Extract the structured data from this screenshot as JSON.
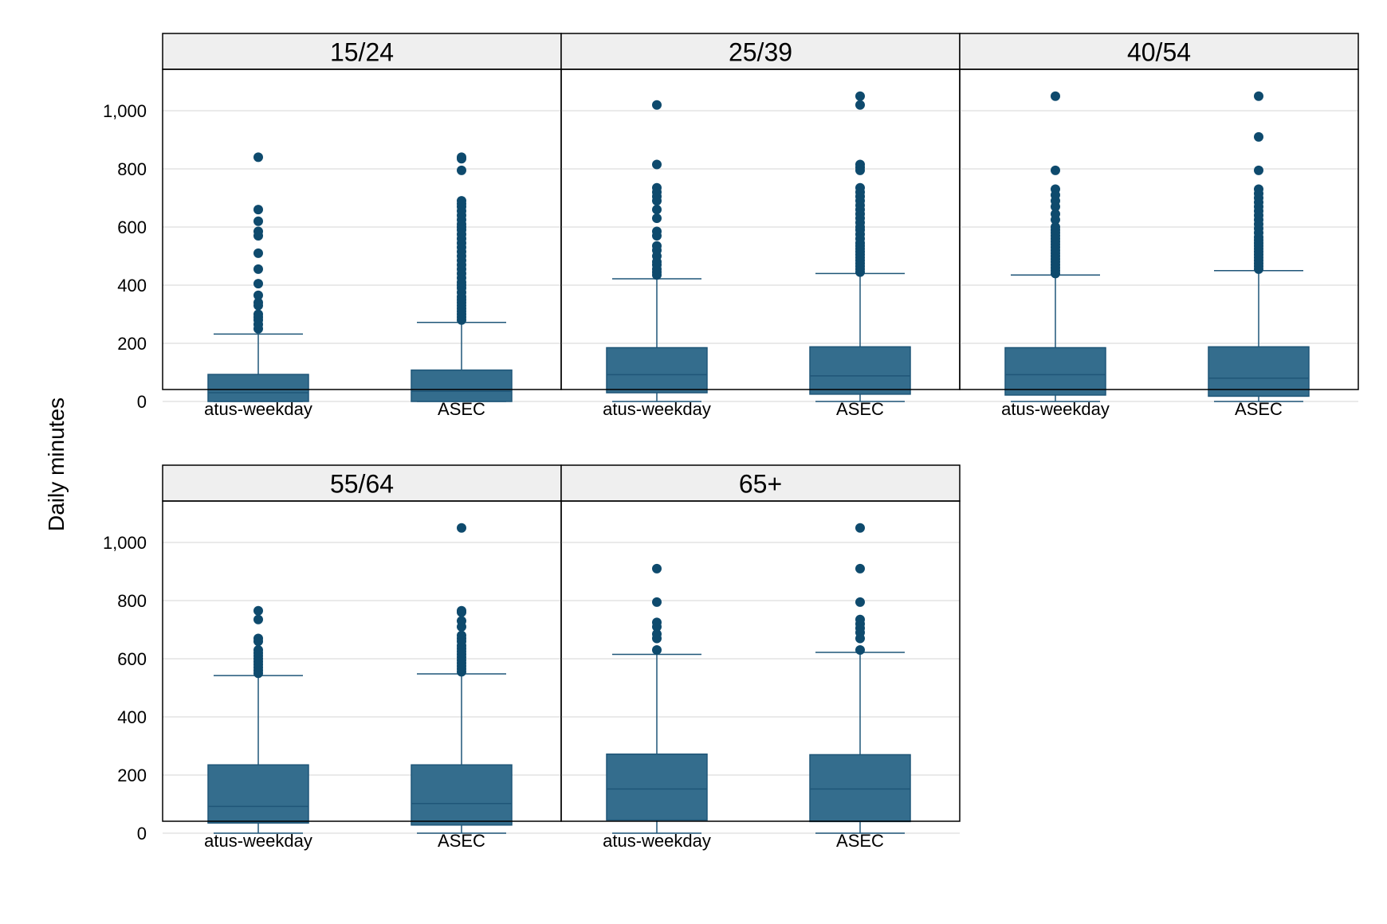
{
  "chart_data": {
    "type": "box",
    "ylabel": "Daily minutes",
    "yticks": [
      0,
      200,
      400,
      600,
      800,
      1000
    ],
    "ytick_labels": [
      "0",
      "200",
      "400",
      "600",
      "800",
      "1,000"
    ],
    "ylim": [
      -85,
      1120
    ],
    "categories": [
      "atus-weekday",
      "ASEC"
    ],
    "colors": {
      "box": "#346d8d",
      "line": "#1f5678",
      "outlier": "#0e4a6d",
      "strip": "#efefef",
      "grid": "#e3e3e3"
    },
    "panels": [
      {
        "label": "15/24",
        "boxes": [
          {
            "category": "atus-weekday",
            "min": 0,
            "q1": 0,
            "median": 30,
            "q3": 93,
            "whisker_high": 232,
            "outliers": [
              250,
              265,
              280,
              290,
              300,
              330,
              340,
              365,
              405,
              455,
              510,
              570,
              585,
              620,
              660,
              840
            ]
          },
          {
            "category": "ASEC",
            "min": 0,
            "q1": 0,
            "median": 35,
            "q3": 108,
            "whisker_high": 272,
            "outliers": [
              280,
              290,
              300,
              310,
              320,
              330,
              340,
              350,
              360,
              375,
              390,
              400,
              410,
              425,
              440,
              455,
              470,
              485,
              500,
              515,
              530,
              545,
              560,
              575,
              590,
              600,
              610,
              625,
              640,
              655,
              670,
              680,
              690,
              795,
              835,
              840
            ]
          }
        ]
      },
      {
        "label": "25/39",
        "boxes": [
          {
            "category": "atus-weekday",
            "min": 0,
            "q1": 30,
            "median": 92,
            "q3": 185,
            "whisker_high": 422,
            "outliers": [
              435,
              445,
              455,
              470,
              480,
              500,
              520,
              535,
              570,
              585,
              630,
              660,
              690,
              705,
              720,
              735,
              815,
              1020
            ]
          },
          {
            "category": "ASEC",
            "min": 0,
            "q1": 25,
            "median": 88,
            "q3": 188,
            "whisker_high": 440,
            "outliers": [
              445,
              455,
              465,
              475,
              485,
              495,
              505,
              515,
              525,
              535,
              545,
              560,
              575,
              590,
              600,
              615,
              630,
              645,
              660,
              675,
              690,
              705,
              720,
              735,
              795,
              805,
              815,
              1020,
              1050
            ]
          }
        ]
      },
      {
        "label": "40/54",
        "boxes": [
          {
            "category": "atus-weekday",
            "min": 0,
            "q1": 22,
            "median": 92,
            "q3": 185,
            "whisker_high": 435,
            "outliers": [
              440,
              450,
              460,
              470,
              480,
              490,
              500,
              510,
              520,
              530,
              540,
              550,
              560,
              570,
              580,
              590,
              600,
              625,
              645,
              670,
              690,
              710,
              730,
              795,
              1050
            ]
          },
          {
            "category": "ASEC",
            "min": 0,
            "q1": 18,
            "median": 80,
            "q3": 188,
            "whisker_high": 450,
            "outliers": [
              455,
              465,
              475,
              485,
              495,
              505,
              515,
              525,
              535,
              545,
              555,
              565,
              580,
              595,
              610,
              625,
              640,
              655,
              670,
              685,
              700,
              715,
              730,
              795,
              910,
              1050
            ]
          }
        ]
      },
      {
        "label": "55/64",
        "boxes": [
          {
            "category": "atus-weekday",
            "min": 0,
            "q1": 35,
            "median": 92,
            "q3": 235,
            "whisker_high": 542,
            "outliers": [
              550,
              560,
              570,
              580,
              590,
              600,
              610,
              620,
              630,
              660,
              670,
              735,
              765
            ]
          },
          {
            "category": "ASEC",
            "min": 0,
            "q1": 28,
            "median": 102,
            "q3": 235,
            "whisker_high": 548,
            "outliers": [
              555,
              565,
              575,
              585,
              595,
              605,
              615,
              625,
              635,
              645,
              660,
              670,
              680,
              710,
              730,
              760,
              765,
              1050
            ]
          }
        ]
      },
      {
        "label": "65+",
        "boxes": [
          {
            "category": "atus-weekday",
            "min": 0,
            "q1": 45,
            "median": 152,
            "q3": 272,
            "whisker_high": 615,
            "outliers": [
              630,
              670,
              685,
              710,
              725,
              795,
              910
            ]
          },
          {
            "category": "ASEC",
            "min": 0,
            "q1": 40,
            "median": 152,
            "q3": 270,
            "whisker_high": 622,
            "outliers": [
              630,
              670,
              690,
              705,
              720,
              735,
              795,
              910,
              1050
            ]
          }
        ]
      }
    ]
  }
}
